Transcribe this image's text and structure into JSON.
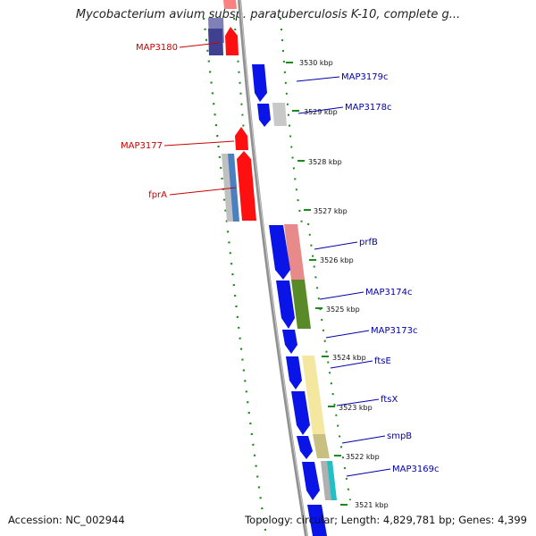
{
  "title": "Mycobacterium avium subsp. paratuberculosis K-10, complete g...",
  "footer": {
    "accession": "Accession: NC_002944",
    "summary": "Topology: circular; Length: 4,829,781 bp; Genes: 4,399"
  },
  "colors": {
    "forward_strand": "#ff0000",
    "reverse_strand": "#0000ff",
    "backbone": "#808080",
    "ticks": "#1a8a1a",
    "forward_label": "#cc0000",
    "reverse_label": "#0000aa"
  },
  "ticks": [
    "3530 kbp",
    "3529 kbp",
    "3528 kbp",
    "3527 kbp",
    "3526 kbp",
    "3525 kbp",
    "3524 kbp",
    "3523 kbp",
    "3522 kbp",
    "3521 kbp"
  ],
  "forward_labels": [
    "MAP3180",
    "MAP3177",
    "fprA"
  ],
  "reverse_labels": [
    "MAP3179c",
    "MAP3178c",
    "prfB",
    "MAP3174c",
    "MAP3173c",
    "ftsE",
    "ftsX",
    "smpB",
    "MAP3169c"
  ]
}
